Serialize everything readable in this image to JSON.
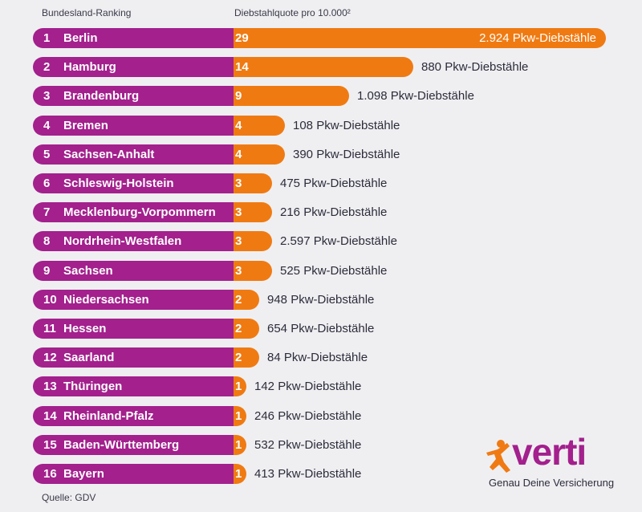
{
  "header": {
    "left_label": "Bundesland-Ranking",
    "right_label": "Diebstahlquote pro 10.000²"
  },
  "source": "Quelle: GDV",
  "logo": {
    "word": "verti",
    "tagline": "Genau Deine Versicherung"
  },
  "colors": {
    "purple": "#a3208d",
    "orange": "#f07a12",
    "background": "#efeff1"
  },
  "chart_data": {
    "type": "bar",
    "orientation": "horizontal",
    "categories": [
      "Berlin",
      "Hamburg",
      "Brandenburg",
      "Bremen",
      "Sachsen-Anhalt",
      "Schleswig-Holstein",
      "Mecklenburg-Vorpommern",
      "Nordrhein-Westfalen",
      "Sachsen",
      "Niedersachsen",
      "Hessen",
      "Saarland",
      "Thüringen",
      "Rheinland-Pfalz",
      "Baden-Württemberg",
      "Bayern"
    ],
    "ranks": [
      "1",
      "2",
      "3",
      "4",
      "5",
      "6",
      "7",
      "8",
      "9",
      "10",
      "11",
      "12",
      "13",
      "14",
      "15",
      "16"
    ],
    "values": [
      29,
      14,
      9,
      4,
      4,
      3,
      3,
      3,
      3,
      2,
      2,
      2,
      1,
      1,
      1,
      1
    ],
    "theft_labels": [
      "2.924 Pkw-Diebstähle",
      "880 Pkw-Diebstähle",
      "1.098 Pkw-Diebstähle",
      "108 Pkw-Diebstähle",
      "390 Pkw-Diebstähle",
      "475 Pkw-Diebstähle",
      "216 Pkw-Diebstähle",
      "2.597 Pkw-Diebstähle",
      "525 Pkw-Diebstähle",
      "948 Pkw-Diebstähle",
      "654 Pkw-Diebstähle",
      "84 Pkw-Diebstähle",
      "142 Pkw-Diebstähle",
      "246 Pkw-Diebstähle",
      "532 Pkw-Diebstähle",
      "413 Pkw-Diebstähle"
    ],
    "theft_counts": [
      2924,
      880,
      1098,
      108,
      390,
      475,
      216,
      2597,
      525,
      948,
      654,
      84,
      142,
      246,
      532,
      413
    ]
  }
}
